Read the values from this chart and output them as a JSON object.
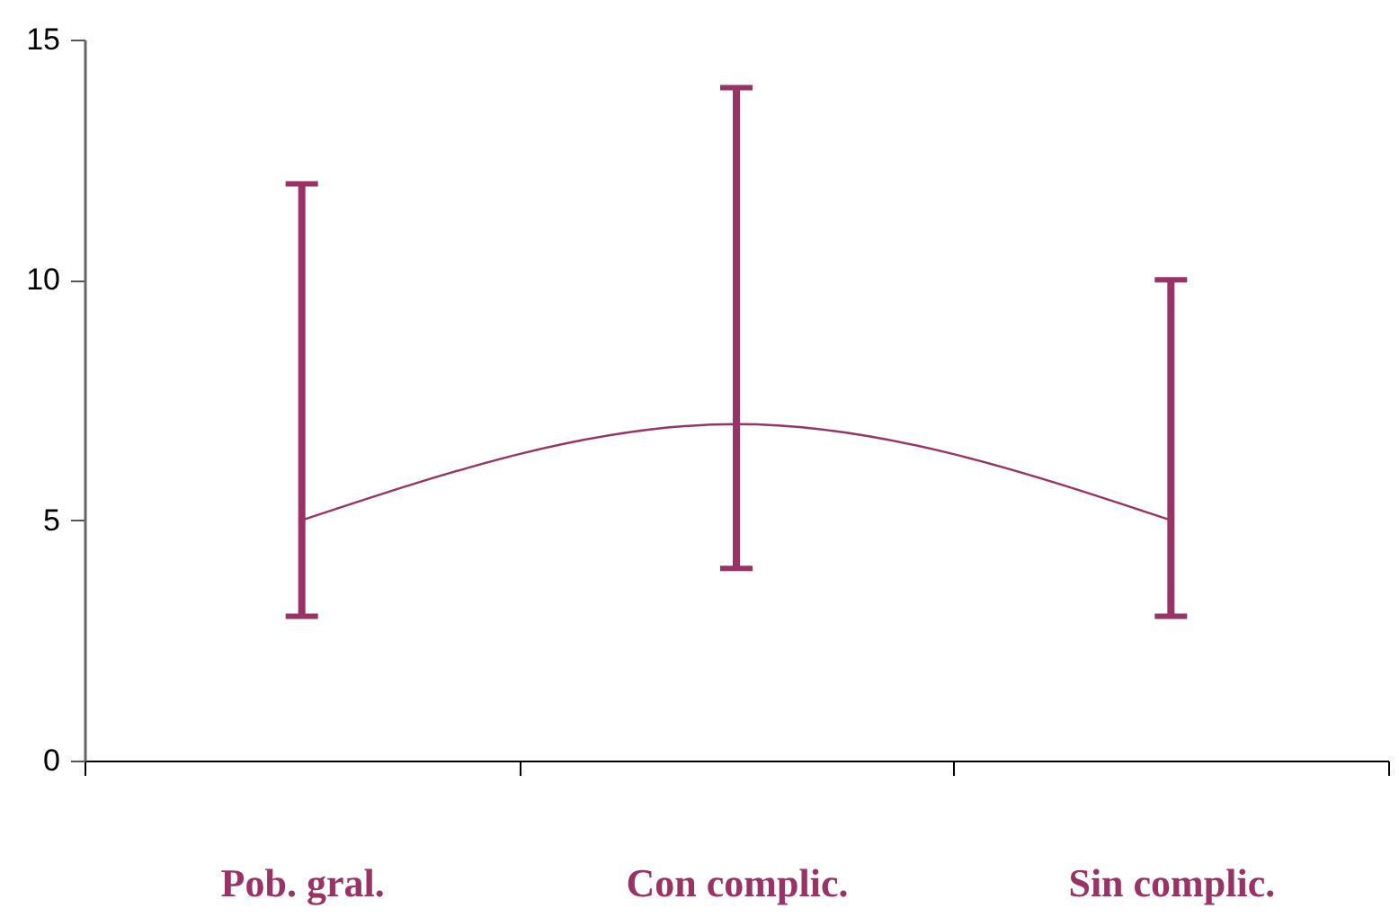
{
  "chart_data": {
    "type": "line",
    "categories": [
      "Pob. gral.",
      "Con complic.",
      "Sin complic."
    ],
    "values": [
      5,
      7,
      5
    ],
    "color": "#993366",
    "errors": [
      [
        3,
        12
      ],
      [
        4,
        14
      ],
      [
        3,
        10
      ]
    ],
    "ylim": [
      0,
      15
    ],
    "yticks": [
      0,
      5,
      10,
      15
    ],
    "grid": false,
    "marker": "none",
    "line_style": "solid"
  }
}
